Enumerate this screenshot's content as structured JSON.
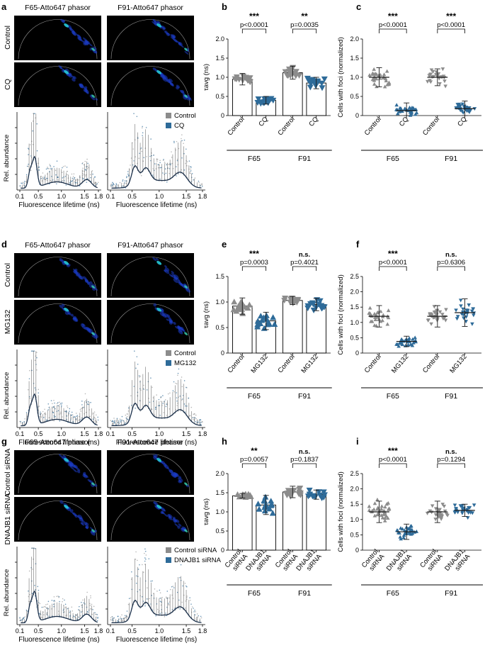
{
  "colors": {
    "control": "#8c8c8c",
    "treat": "#2e6b99",
    "phasor_bg": "#000000",
    "mean_line": "#1a1a1a"
  },
  "rows": [
    {
      "phasor": {
        "letter": "a",
        "col_titles": [
          "F65-Atto647 phasor",
          "F91-Atto647 phasor"
        ],
        "row_labels": [
          "Control",
          "CQ"
        ],
        "legend": [
          "Control",
          "CQ"
        ],
        "ylabel": "Rel. abundance",
        "xlabel": "Fluorescence lifetime (ns)",
        "xticks": [
          "0.1",
          "0.5",
          "1.0",
          "1.5",
          "1.8"
        ]
      },
      "tau": {
        "letter": "b",
        "ylabel": "τavg (ns)",
        "ymax": 2.0,
        "yticks": [
          "0",
          "0.5",
          "1.0",
          "1.5",
          "2.0"
        ],
        "bar_labels": [
          "Control",
          "CQ",
          "Control",
          "CQ"
        ],
        "group_labels": [
          "F65",
          "F91"
        ],
        "stars": [
          "***",
          "**"
        ],
        "pvals": [
          "p<0.0001",
          "p=0.0035"
        ]
      },
      "foci": {
        "letter": "c",
        "ylabel": "Cells with foci (normalized)",
        "ymax": 2.0,
        "yticks": [
          "0",
          "0.5",
          "1.0",
          "1.5",
          "2.0"
        ],
        "bar_labels": [
          "Control",
          "CQ",
          "Control",
          "CQ"
        ],
        "group_labels": [
          "F65",
          "F91"
        ],
        "stars": [
          "***",
          "***"
        ],
        "pvals": [
          "p<0.0001",
          "p<0.0001"
        ]
      }
    },
    {
      "phasor": {
        "letter": "d",
        "col_titles": [
          "F65-Atto647 phasor",
          "F91-Atto647 phasor"
        ],
        "row_labels": [
          "Control",
          "MG132"
        ],
        "legend": [
          "Control",
          "MG132"
        ],
        "ylabel": "Rel. abundance",
        "xlabel": "Fluorescence lifetime (ns)",
        "xticks": [
          "0.1",
          "0.5",
          "1.0",
          "1.5",
          "1.8"
        ]
      },
      "tau": {
        "letter": "e",
        "ylabel": "τavg (ns)",
        "ymax": 1.5,
        "yticks": [
          "0",
          "0.5",
          "1.0",
          "1.5"
        ],
        "bar_labels": [
          "Control",
          "MG132",
          "Control",
          "MG132"
        ],
        "group_labels": [
          "F65",
          "F91"
        ],
        "stars": [
          "***",
          "n.s."
        ],
        "pvals": [
          "p=0.0003",
          "p=0.4021"
        ]
      },
      "foci": {
        "letter": "f",
        "ylabel": "Cells with foci (normalized)",
        "ymax": 2.5,
        "yticks": [
          "0",
          "0.5",
          "1.0",
          "1.5",
          "2.0",
          "2.5"
        ],
        "bar_labels": [
          "Control",
          "MG132",
          "Control",
          "MG132"
        ],
        "group_labels": [
          "F65",
          "F91"
        ],
        "stars": [
          "***",
          "n.s."
        ],
        "pvals": [
          "p<0.0001",
          "p=0.6306"
        ]
      }
    },
    {
      "phasor": {
        "letter": "g",
        "col_titles": [
          "F65-Atto647 phasor",
          "F91-Atto647 phasor"
        ],
        "row_labels": [
          "Control siRNA",
          "DNAJB1 siRNA"
        ],
        "legend": [
          "Control siRNA",
          "DNAJB1 siRNA"
        ],
        "ylabel": "Rel. abundance",
        "xlabel": "Fluorescence lifetime (ns)",
        "xticks": [
          "0.1",
          "0.5",
          "1.0",
          "1.5",
          "1.8"
        ]
      },
      "tau": {
        "letter": "h",
        "ylabel": "τavg (ns)",
        "ymax": 2.0,
        "yticks": [
          "0",
          "0.5",
          "1.0",
          "1.5",
          "2.0"
        ],
        "bar_labels": [
          "Control siRNA",
          "DNAJB1 siRNA",
          "Control siRNA",
          "DNAJB1 siRNA"
        ],
        "group_labels": [
          "F65",
          "F91"
        ],
        "stars": [
          "**",
          "n.s."
        ],
        "pvals": [
          "p=0.0057",
          "p=0.1837"
        ]
      },
      "foci": {
        "letter": "i",
        "ylabel": "Cells with foci (normalized)",
        "ymax": 2.5,
        "yticks": [
          "0",
          "0.5",
          "1.0",
          "1.5",
          "2.0",
          "2.5"
        ],
        "bar_labels": [
          "Control siRNA",
          "DNAJB1 siRNA",
          "Control siRNA",
          "DNAJB1 siRNA"
        ],
        "group_labels": [
          "F65",
          "F91"
        ],
        "stars": [
          "***",
          "n.s."
        ],
        "pvals": [
          "p<0.0001",
          "p=0.1294"
        ]
      }
    }
  ],
  "chart_data": [
    {
      "panel": "b",
      "type": "bar",
      "title": "",
      "ylabel": "τavg (ns)",
      "ylim": [
        0,
        2.0
      ],
      "categories": [
        "F65 Control",
        "F65 CQ",
        "F91 Control",
        "F91 CQ"
      ],
      "values": [
        0.95,
        0.4,
        1.12,
        0.85
      ],
      "sd": [
        0.15,
        0.1,
        0.17,
        0.15
      ],
      "n": [
        15,
        20,
        15,
        15
      ],
      "spread": [
        0.14,
        0.09,
        0.16,
        0.14
      ],
      "markers": [
        "triangle-down",
        "triangle-down",
        "triangle-down",
        "triangle-down"
      ]
    },
    {
      "panel": "c",
      "type": "scatter",
      "title": "",
      "ylabel": "Cells with foci (normalized)",
      "ylim": [
        0,
        2.0
      ],
      "categories": [
        "F65 Control",
        "F65 CQ",
        "F91 Control",
        "F91 CQ"
      ],
      "values": [
        1.0,
        0.13,
        1.0,
        0.18
      ],
      "sd": [
        0.25,
        0.2,
        0.22,
        0.2
      ],
      "n": [
        30,
        30,
        25,
        30
      ],
      "spread": [
        0.26,
        0.13,
        0.2,
        0.16
      ],
      "markers": [
        "triangle-up",
        "triangle-up",
        "triangle-down",
        "triangle-down"
      ]
    },
    {
      "panel": "e",
      "type": "bar",
      "title": "",
      "ylabel": "τavg (ns)",
      "ylim": [
        0,
        1.5
      ],
      "categories": [
        "F65 Control",
        "F65 MG132",
        "F91 Control",
        "F91 MG132"
      ],
      "values": [
        0.92,
        0.63,
        1.03,
        0.95
      ],
      "sd": [
        0.16,
        0.17,
        0.08,
        0.12
      ],
      "n": [
        15,
        15,
        15,
        15
      ],
      "spread": [
        0.14,
        0.16,
        0.08,
        0.11
      ],
      "markers": [
        "triangle-up",
        "triangle-up",
        "triangle-down",
        "triangle-down"
      ]
    },
    {
      "panel": "f",
      "type": "scatter",
      "title": "",
      "ylabel": "Cells with foci (normalized)",
      "ylim": [
        0,
        2.5
      ],
      "categories": [
        "F65 Control",
        "F65 MG132",
        "F91 Control",
        "F91 MG132"
      ],
      "values": [
        1.2,
        0.38,
        1.2,
        1.32
      ],
      "sd": [
        0.35,
        0.17,
        0.35,
        0.45
      ],
      "n": [
        30,
        30,
        30,
        25
      ],
      "spread": [
        0.33,
        0.16,
        0.3,
        0.38
      ],
      "markers": [
        "triangle-up",
        "triangle-up",
        "triangle-down",
        "triangle-down"
      ]
    },
    {
      "panel": "h",
      "type": "bar",
      "title": "",
      "ylabel": "τavg (ns)",
      "ylim": [
        0,
        2.0
      ],
      "categories": [
        "F65 Control siRNA",
        "F65 DNAJB1 siRNA",
        "F91 Control siRNA",
        "F91 DNAJB1 siRNA"
      ],
      "values": [
        1.42,
        1.18,
        1.52,
        1.45
      ],
      "sd": [
        0.06,
        0.25,
        0.15,
        0.12
      ],
      "n": [
        15,
        15,
        15,
        15
      ],
      "spread": [
        0.05,
        0.25,
        0.14,
        0.11
      ],
      "markers": [
        "triangle-up",
        "triangle-up",
        "triangle-down",
        "triangle-down"
      ]
    },
    {
      "panel": "i",
      "type": "scatter",
      "title": "",
      "ylabel": "Cells with foci (normalized)",
      "ylim": [
        0,
        2.5
      ],
      "categories": [
        "F65 Control siRNA",
        "F65 DNAJB1 siRNA",
        "F91 Control siRNA",
        "F91 DNAJB1 siRNA"
      ],
      "values": [
        1.25,
        0.6,
        1.25,
        1.3
      ],
      "sd": [
        0.35,
        0.25,
        0.35,
        0.2
      ],
      "n": [
        35,
        30,
        30,
        30
      ],
      "spread": [
        0.33,
        0.22,
        0.3,
        0.2
      ],
      "markers": [
        "triangle-up",
        "triangle-up",
        "triangle-down",
        "triangle-down"
      ]
    }
  ]
}
